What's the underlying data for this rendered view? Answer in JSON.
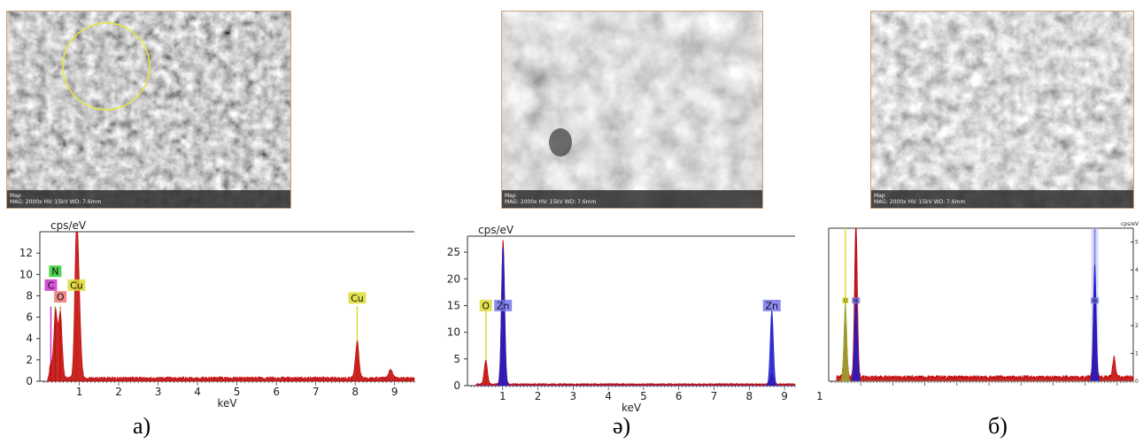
{
  "panels": [
    {
      "id": "a",
      "caption": "а)",
      "sem": {
        "label": "Map",
        "info": "MAG: 2000x  HV: 15kV  WD: 7.6mm",
        "highlight_circle": true,
        "tone": "dark"
      },
      "chart_data": {
        "type": "line",
        "ylabel": "cps/eV",
        "xlabel": "keV",
        "xlim": [
          0,
          9.5
        ],
        "ylim": [
          0,
          14
        ],
        "xticks": [
          "1",
          "2",
          "3",
          "4",
          "5",
          "6",
          "7",
          "8",
          "9"
        ],
        "yticks": [
          "0",
          "2",
          "4",
          "6",
          "8",
          "10",
          "12"
        ],
        "series": [
          {
            "color": "#c00000",
            "peaks": [
              [
                0.28,
                1.2
              ],
              [
                0.4,
                6.2
              ],
              [
                0.52,
                6.0
              ],
              [
                0.93,
                13.3
              ],
              [
                1.0,
                5.0
              ],
              [
                8.05,
                3.4
              ],
              [
                8.9,
                0.8
              ]
            ],
            "baseline": 0.3
          }
        ],
        "element_markers": [
          {
            "label": "N",
            "energy": 0.39,
            "tag_y": 10.3,
            "color": "#33cc33",
            "height": 7.0
          },
          {
            "label": "C",
            "energy": 0.28,
            "tag_y": 9.0,
            "color": "#cc33cc",
            "height": 7.0
          },
          {
            "label": "O",
            "energy": 0.52,
            "tag_y": 7.9,
            "color": "#ee7777",
            "height": 7.0
          },
          {
            "label": "Cu",
            "energy": 0.93,
            "tag_y": 9.0,
            "color": "#dddd33",
            "height": 7.0
          },
          {
            "label": "Cu",
            "energy": 8.05,
            "tag_y": 7.8,
            "color": "#dddd33",
            "height": 7.0
          }
        ]
      }
    },
    {
      "id": "e",
      "caption": "ә)",
      "sem": {
        "label": "Map",
        "info": "MAG: 2000x  HV: 15kV  WD: 7.6mm",
        "highlight_circle": false,
        "tone": "light"
      },
      "chart_data": {
        "type": "line",
        "ylabel": "cps/eV",
        "xlabel": "keV",
        "xlim": [
          0,
          9.3
        ],
        "ylim": [
          0,
          28
        ],
        "xticks": [
          "1",
          "2",
          "3",
          "4",
          "5",
          "6",
          "7",
          "8",
          "9",
          "1"
        ],
        "yticks": [
          "0",
          "5",
          "10",
          "15",
          "20",
          "25"
        ],
        "series": [
          {
            "color": "#c00000",
            "peaks": [
              [
                0.52,
                4.5
              ],
              [
                1.01,
                27.0
              ],
              [
                8.64,
                2.0
              ]
            ],
            "baseline": 0.3
          },
          {
            "color": "#1a1acc",
            "peaks": [
              [
                1.01,
                26.0
              ],
              [
                8.64,
                14.0
              ],
              [
                9.57,
                2.0
              ]
            ],
            "baseline": 0.0
          }
        ],
        "element_markers": [
          {
            "label": "O",
            "energy": 0.52,
            "tag_y": 15.0,
            "color": "#dddd33",
            "height": 14.0
          },
          {
            "label": "Zn",
            "energy": 1.01,
            "tag_y": 15.0,
            "color": "#7777ee",
            "height": 14.0
          },
          {
            "label": "Zn",
            "energy": 8.64,
            "tag_y": 15.0,
            "color": "#7777ee",
            "height": 14.0
          }
        ]
      }
    },
    {
      "id": "b",
      "caption": "б)",
      "sem": {
        "label": "Map",
        "info": "MAG: 2000x  HV: 15kV  WD: 7.6mm",
        "highlight_circle": false,
        "tone": "mid"
      },
      "chart_data": {
        "type": "line",
        "ylabel": "cps/eV",
        "xlabel": "",
        "xlim": [
          0,
          9.5
        ],
        "ylim": [
          0,
          5.5
        ],
        "xticks": [],
        "yticks": [
          "0",
          "1",
          "2",
          "3",
          "4",
          "5"
        ],
        "series": [
          {
            "color": "#c00000",
            "peaks": [
              [
                0.52,
                2.0
              ],
              [
                0.85,
                5.6
              ],
              [
                8.3,
                3.0
              ],
              [
                8.9,
                0.7
              ]
            ],
            "baseline": 0.15
          },
          {
            "color": "#1a1acc",
            "peaks": [
              [
                0.85,
                3.0
              ],
              [
                8.3,
                4.2
              ]
            ],
            "baseline": 0.0
          },
          {
            "color": "#99aa33",
            "peaks": [
              [
                0.52,
                2.8
              ]
            ],
            "baseline": 0.0
          }
        ],
        "element_markers": [
          {
            "label": "O",
            "energy": 0.52,
            "tag_y": 2.9,
            "color": "#dddd33",
            "height": 5.5
          },
          {
            "label": "Ni",
            "energy": 0.85,
            "tag_y": 2.9,
            "color": "#7777ee",
            "height": 5.5
          },
          {
            "label": "Ni",
            "energy": 8.3,
            "tag_y": 2.9,
            "color": "#7777ee",
            "height": 5.5,
            "band": true
          }
        ]
      }
    }
  ]
}
